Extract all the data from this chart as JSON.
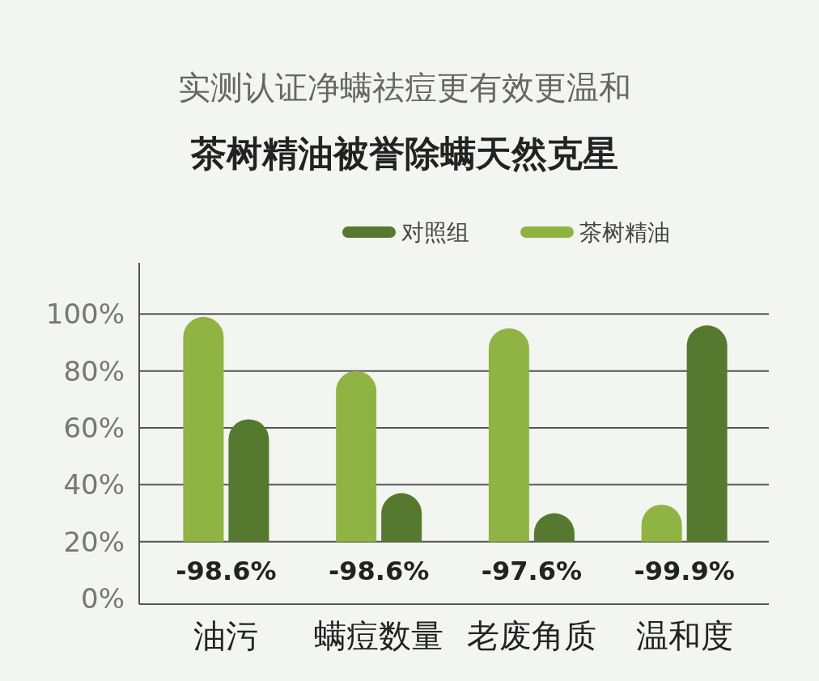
{
  "chart_data": {
    "type": "bar",
    "title": "实测认证净螨祛痘更有效更温和",
    "subtitle": "茶树精油被誉除螨天然克星",
    "categories": [
      "油污",
      "螨痘数量",
      "老废角质",
      "温和度"
    ],
    "series": [
      {
        "name": "对照组",
        "color": "#557a2f",
        "base": [
          20,
          20,
          20,
          20
        ],
        "values": [
          43,
          17,
          10,
          76
        ]
      },
      {
        "name": "茶树精油",
        "color": "#8fb443",
        "base": [
          20,
          20,
          20,
          20
        ],
        "values": [
          79,
          60,
          75,
          13
        ]
      }
    ],
    "ylim": [
      0,
      118
    ],
    "yticks": [
      {
        "value": 0,
        "label": "0%"
      },
      {
        "value": 20,
        "label": "20%"
      },
      {
        "value": 40,
        "label": "40%"
      },
      {
        "value": 60,
        "label": "60%"
      },
      {
        "value": 80,
        "label": "80%"
      },
      {
        "value": 100,
        "label": "100%"
      }
    ],
    "grid": "y",
    "legend": "top right",
    "annotations": [
      "-98.6%",
      "-98.6%",
      "-97.6%",
      "-99.9%"
    ]
  }
}
